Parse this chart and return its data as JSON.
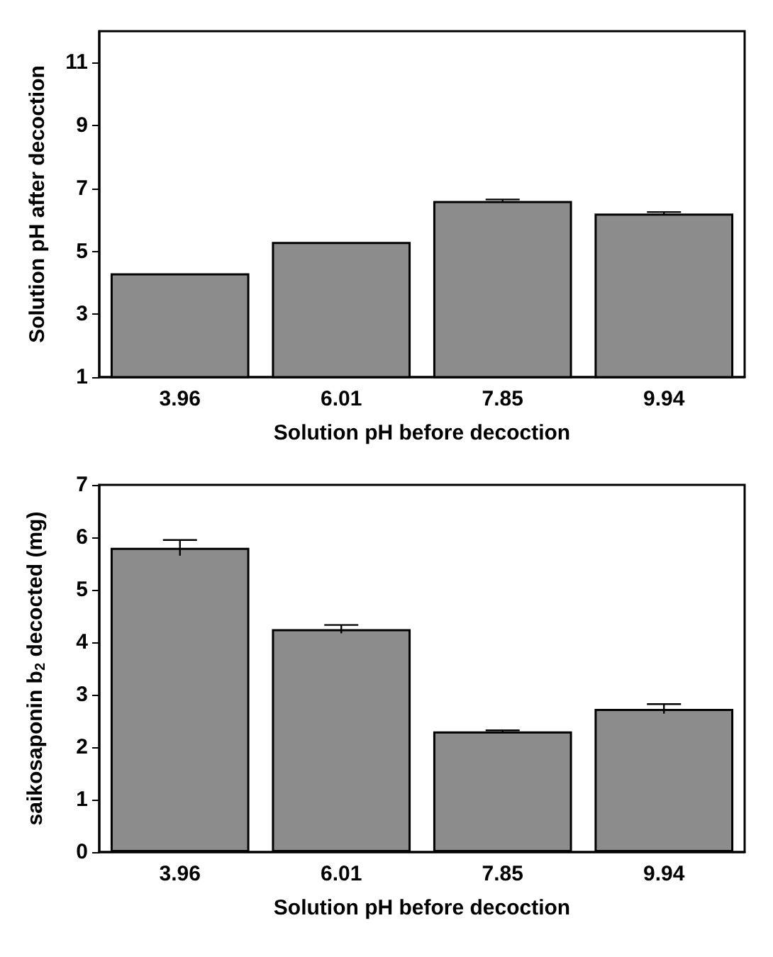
{
  "chart_data": [
    {
      "type": "bar",
      "xlabel": "Solution pH before decoction",
      "ylabel": "Solution pH after decoction",
      "categories": [
        "3.96",
        "6.01",
        "7.85",
        "9.94"
      ],
      "values": [
        4.3,
        5.3,
        6.6,
        6.2
      ],
      "errors": [
        null,
        null,
        0.05,
        0.05
      ],
      "color": "#8c8c8c",
      "ylim": [
        1,
        12
      ],
      "yticks": [
        1,
        3,
        5,
        7,
        9,
        11
      ],
      "grid": false
    },
    {
      "type": "bar",
      "xlabel": "Solution pH before decoction",
      "ylabel": "saikosaponin b$_{2}$ decocted (mg)",
      "categories": [
        "3.96",
        "6.01",
        "7.85",
        "9.94"
      ],
      "values": [
        5.8,
        4.25,
        2.3,
        2.73
      ],
      "errors": [
        0.15,
        0.08,
        0.02,
        0.09
      ],
      "color": "#8c8c8c",
      "ylim": [
        0,
        7
      ],
      "yticks": [
        0,
        1,
        2,
        3,
        4,
        5,
        6,
        7
      ],
      "grid": false
    }
  ]
}
